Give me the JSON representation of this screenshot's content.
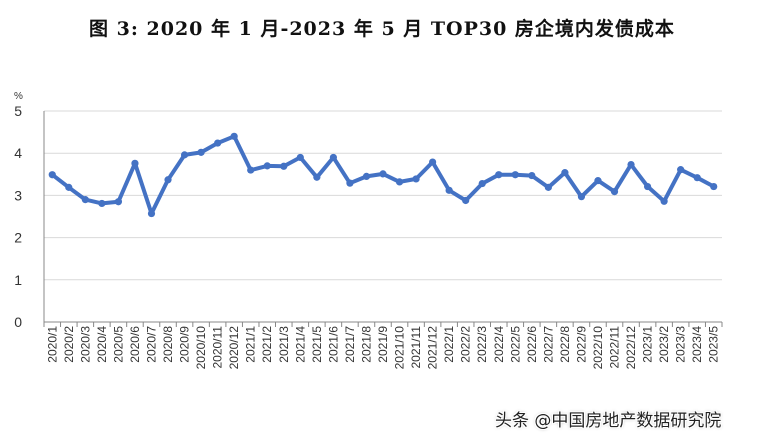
{
  "title": "图 3: 2020 年 1 月-2023 年 5 月 TOP30 房企境内发债成本",
  "watermark": "头条 @中国房地产数据研究院",
  "colors": {
    "line": "#4472C4",
    "grid": "#D9D9D9",
    "axis": "#888888"
  },
  "chart_data": {
    "type": "line",
    "title": "图 3: 2020 年 1 月-2023 年 5 月 TOP30 房企境内发债成本",
    "xlabel": "",
    "ylabel": "%",
    "ylim": [
      0,
      5
    ],
    "yticks": [
      0,
      1,
      2,
      3,
      4,
      5
    ],
    "grid": true,
    "legend": null,
    "categories": [
      "2020/1",
      "2020/2",
      "2020/3",
      "2020/4",
      "2020/5",
      "2020/6",
      "2020/7",
      "2020/8",
      "2020/9",
      "2020/10",
      "2020/11",
      "2020/12",
      "2021/1",
      "2021/2",
      "2021/3",
      "2021/4",
      "2021/5",
      "2021/6",
      "2021/7",
      "2021/8",
      "2021/9",
      "2021/10",
      "2021/11",
      "2021/12",
      "2022/1",
      "2022/2",
      "2022/3",
      "2022/4",
      "2022/5",
      "2022/6",
      "2022/7",
      "2022/8",
      "2022/9",
      "2022/10",
      "2022/11",
      "2022/12",
      "2023/1",
      "2023/2",
      "2023/3",
      "2023/4",
      "2023/5"
    ],
    "series": [
      {
        "name": "TOP30房企境内发债成本",
        "values": [
          3.49,
          3.19,
          2.9,
          2.81,
          2.85,
          3.76,
          2.57,
          3.37,
          3.96,
          4.02,
          4.24,
          4.4,
          3.6,
          3.7,
          3.69,
          3.9,
          3.43,
          3.9,
          3.29,
          3.45,
          3.51,
          3.32,
          3.39,
          3.79,
          3.12,
          2.88,
          3.28,
          3.49,
          3.49,
          3.47,
          3.19,
          3.54,
          2.97,
          3.35,
          3.09,
          3.73,
          3.21,
          2.86,
          3.61,
          3.42,
          3.21
        ]
      }
    ]
  }
}
